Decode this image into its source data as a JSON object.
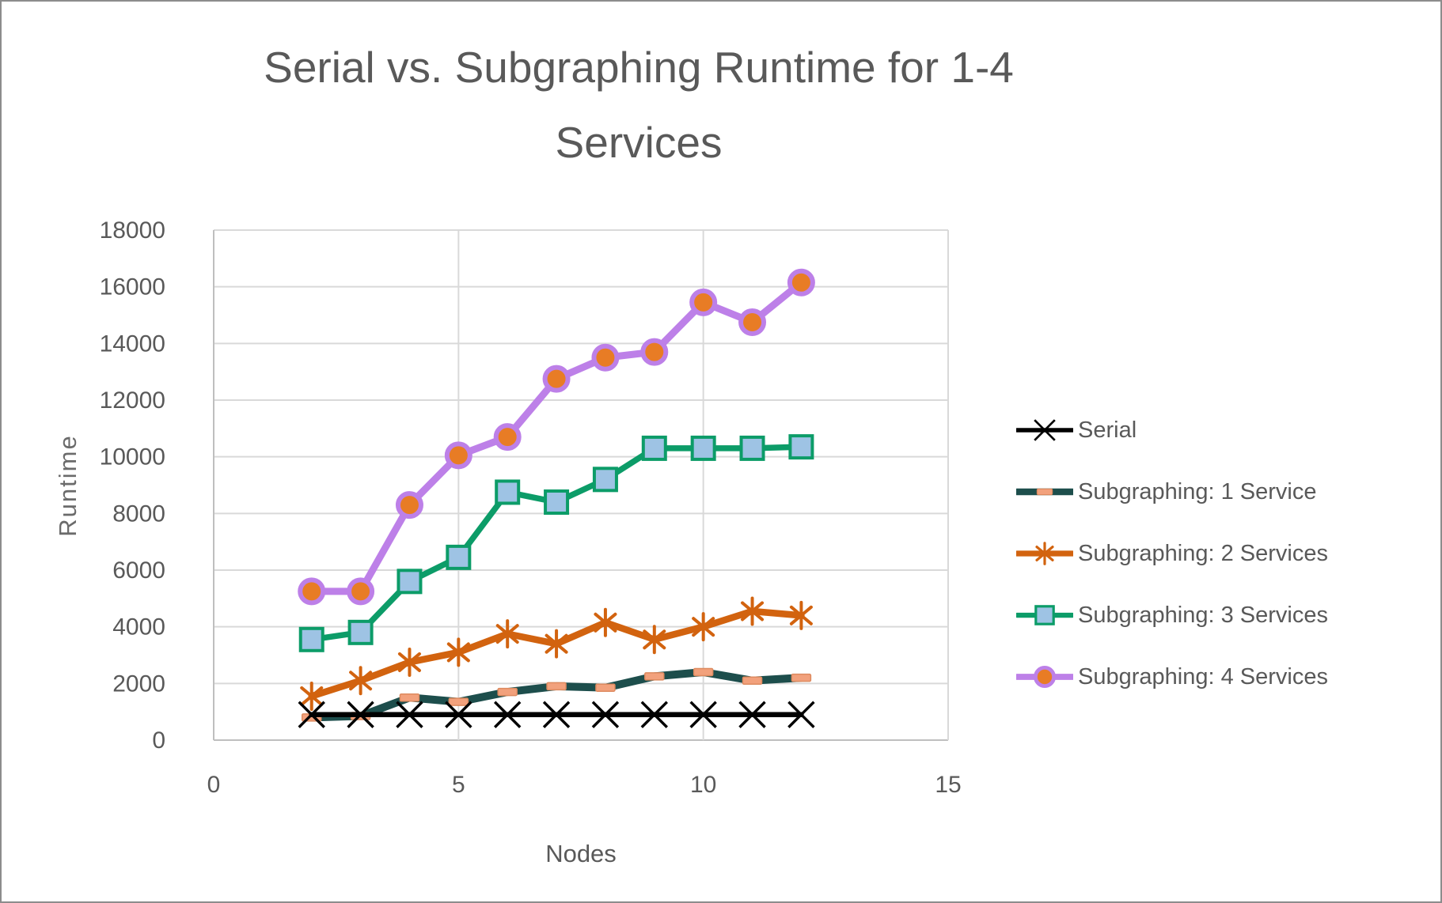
{
  "header": {
    "title_line1": "Serial vs. Subgraphing Runtime for 1-4",
    "title_line2": "Services"
  },
  "chart_data": {
    "type": "line",
    "title": "Serial vs. Subgraphing Runtime for 1-4 Services",
    "xlabel": "Nodes",
    "ylabel": "Runtime",
    "xlim": [
      0,
      15
    ],
    "ylim": [
      0,
      18000
    ],
    "x_ticks": [
      0,
      5,
      10,
      15
    ],
    "y_ticks": [
      0,
      2000,
      4000,
      6000,
      8000,
      10000,
      12000,
      14000,
      16000,
      18000
    ],
    "grid": true,
    "legend_position": "right",
    "x": [
      2,
      3,
      4,
      5,
      6,
      7,
      8,
      9,
      10,
      11,
      12
    ],
    "series": [
      {
        "name": "Serial",
        "line_color": "#000000",
        "marker": "x",
        "marker_color": "#000000",
        "values": [
          900,
          900,
          900,
          900,
          900,
          900,
          900,
          900,
          900,
          900,
          900
        ]
      },
      {
        "name": "Subgraphing: 1 Service",
        "line_color": "#1D4E4C",
        "marker": "dash",
        "marker_fill": "#F2A17C",
        "marker_stroke": "#DD8A5F",
        "values": [
          800,
          850,
          1500,
          1350,
          1700,
          1900,
          1850,
          2250,
          2400,
          2100,
          2200
        ]
      },
      {
        "name": "Subgraphing: 2 Services",
        "line_color": "#D2630F",
        "marker": "asterisk",
        "marker_color": "#D2630F",
        "values": [
          1550,
          2100,
          2750,
          3100,
          3750,
          3400,
          4150,
          3550,
          4000,
          4550,
          4400
        ]
      },
      {
        "name": "Subgraphing: 3 Services",
        "line_color": "#0C9C68",
        "marker": "square",
        "marker_fill": "#9EC3E4",
        "marker_stroke": "#0C9C68",
        "values": [
          3550,
          3800,
          5600,
          6450,
          8750,
          8400,
          9200,
          10300,
          10300,
          10300,
          10350
        ]
      },
      {
        "name": "Subgraphing: 4 Services",
        "line_color": "#BD80E8",
        "marker": "circle",
        "marker_fill": "#E87C25",
        "marker_stroke": "#BD80E8",
        "values": [
          5250,
          5250,
          8300,
          10050,
          10700,
          12750,
          13500,
          13700,
          15450,
          14750,
          16150
        ]
      }
    ],
    "colors": {
      "text": "#595959",
      "gridline": "#D9D9D9",
      "axis_line": "#BFBFBF",
      "frame_border": "#8C8C8C",
      "background": "#FFFFFF"
    }
  }
}
